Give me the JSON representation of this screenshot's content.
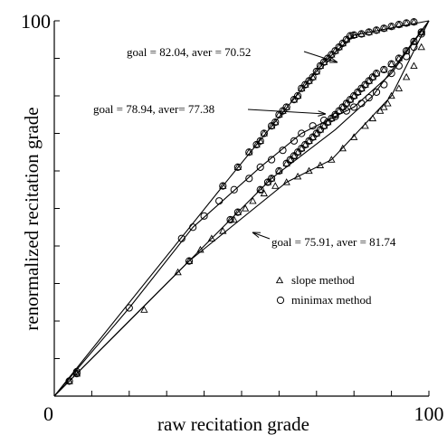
{
  "chart_data": {
    "type": "line",
    "title": "",
    "xlabel": "raw recitation grade",
    "ylabel": "renormalized recitation grade",
    "xlim": [
      0,
      100
    ],
    "ylim": [
      0,
      100
    ],
    "x_tick_labels": [
      "0",
      "100"
    ],
    "y_tick_labels": [
      "100"
    ],
    "grid": false,
    "legend": {
      "position": "right-middle",
      "entries": [
        {
          "label": "slope method",
          "marker": "triangle"
        },
        {
          "label": "minimax method",
          "marker": "circle"
        }
      ]
    },
    "annotations": [
      {
        "text": "goal = 82.04, aver = 70.52",
        "points_to_curve": "goal 82.04"
      },
      {
        "text": "goal = 78.94, aver= 77.38",
        "points_to_curve": "goal 78.94"
      },
      {
        "text": "goal = 75.91, aver = 81.74",
        "points_to_curve": "goal 75.91"
      }
    ],
    "series": [
      {
        "curve": "goal 82.04",
        "method": "slope",
        "line": [
          [
            0,
            0
          ],
          [
            45,
            56
          ],
          [
            72,
            89
          ],
          [
            80,
            96.2
          ],
          [
            100,
            100
          ]
        ],
        "markers": [
          [
            45,
            56
          ],
          [
            49,
            61
          ],
          [
            52,
            65
          ],
          [
            54,
            67
          ],
          [
            55,
            68
          ],
          [
            56,
            70
          ],
          [
            58,
            72
          ],
          [
            59,
            73
          ],
          [
            60,
            75
          ],
          [
            61,
            76
          ],
          [
            62,
            77
          ],
          [
            64,
            79
          ],
          [
            65,
            80
          ],
          [
            66,
            82
          ],
          [
            67,
            83
          ],
          [
            68,
            84
          ],
          [
            69,
            85
          ],
          [
            70,
            86.5
          ],
          [
            71,
            88
          ],
          [
            72,
            89
          ],
          [
            73,
            90
          ],
          [
            74,
            91
          ],
          [
            75,
            92
          ],
          [
            76,
            93
          ],
          [
            77,
            94
          ],
          [
            78,
            95
          ],
          [
            79,
            96
          ],
          [
            80,
            96.2
          ],
          [
            82,
            96.5
          ],
          [
            84,
            97
          ],
          [
            86,
            97.5
          ],
          [
            88,
            98
          ],
          [
            90,
            98.5
          ],
          [
            92,
            99
          ],
          [
            94,
            99.4
          ],
          [
            96,
            99.7
          ]
        ]
      },
      {
        "curve": "goal 78.94",
        "method": "slope",
        "line": [
          [
            0,
            0
          ],
          [
            36,
            36
          ],
          [
            58,
            58
          ],
          [
            75,
            71
          ],
          [
            85,
            80
          ],
          [
            100,
            100
          ]
        ],
        "markers": [
          [
            4,
            4
          ],
          [
            6,
            6
          ],
          [
            36,
            36
          ],
          [
            47,
            47
          ],
          [
            49,
            49
          ],
          [
            55,
            55
          ],
          [
            57,
            57
          ],
          [
            58,
            58
          ],
          [
            60,
            60
          ],
          [
            62,
            62
          ],
          [
            63,
            63
          ],
          [
            64,
            64
          ],
          [
            65,
            65
          ],
          [
            66,
            66
          ],
          [
            67,
            67
          ],
          [
            68,
            68
          ],
          [
            69,
            69
          ],
          [
            70,
            70
          ],
          [
            71,
            71
          ],
          [
            72,
            72
          ],
          [
            73,
            73
          ],
          [
            74,
            74
          ],
          [
            75,
            75
          ],
          [
            76,
            76
          ],
          [
            77,
            77
          ],
          [
            78,
            78
          ],
          [
            79,
            79
          ],
          [
            80,
            80
          ],
          [
            81,
            81
          ],
          [
            82,
            82
          ],
          [
            83,
            83
          ],
          [
            84,
            84
          ],
          [
            85,
            85
          ],
          [
            86,
            86
          ],
          [
            88,
            87
          ],
          [
            90,
            88.5
          ],
          [
            92,
            90
          ],
          [
            94,
            92
          ],
          [
            96,
            94.5
          ],
          [
            98,
            97
          ]
        ]
      },
      {
        "curve": "goal 75.91",
        "method": "slope",
        "line": [
          [
            0,
            0
          ],
          [
            36,
            36
          ],
          [
            62,
            57
          ],
          [
            74,
            63
          ],
          [
            90,
            80
          ],
          [
            100,
            100
          ]
        ],
        "markers": [
          [
            4,
            4
          ],
          [
            6,
            6
          ],
          [
            24,
            23
          ],
          [
            33,
            33
          ],
          [
            36,
            36
          ],
          [
            39,
            39
          ],
          [
            42,
            42
          ],
          [
            45,
            44
          ],
          [
            48,
            47
          ],
          [
            51,
            50
          ],
          [
            53,
            52
          ],
          [
            56,
            54
          ],
          [
            59,
            56
          ],
          [
            62,
            57
          ],
          [
            65,
            58.5
          ],
          [
            68,
            60
          ],
          [
            71,
            61.5
          ],
          [
            74,
            63
          ],
          [
            77,
            66
          ],
          [
            80,
            69
          ],
          [
            83,
            72
          ],
          [
            85,
            74
          ],
          [
            87,
            76
          ],
          [
            88,
            77
          ],
          [
            89,
            78
          ],
          [
            90,
            80
          ],
          [
            92,
            82
          ],
          [
            94,
            85
          ],
          [
            96,
            88
          ],
          [
            98,
            93
          ]
        ]
      },
      {
        "curve": "goal 75.91",
        "method": "minimax",
        "line": [
          [
            0,
            0
          ],
          [
            20,
            23.5
          ],
          [
            37,
            45
          ],
          [
            55,
            61
          ],
          [
            66,
            70
          ],
          [
            80,
            77
          ],
          [
            90,
            86
          ],
          [
            100,
            100
          ]
        ],
        "markers": [
          [
            6,
            6.5
          ],
          [
            20,
            23.5
          ],
          [
            34,
            42
          ],
          [
            37,
            45
          ],
          [
            40,
            48
          ],
          [
            44,
            52
          ],
          [
            48,
            55
          ],
          [
            52,
            58
          ],
          [
            55,
            61
          ],
          [
            58,
            63
          ],
          [
            61,
            65.5
          ],
          [
            64,
            68
          ],
          [
            66,
            70
          ],
          [
            69,
            72
          ],
          [
            72,
            73.5
          ],
          [
            75,
            74.5
          ],
          [
            78,
            76
          ],
          [
            80,
            77
          ],
          [
            82,
            78
          ],
          [
            84,
            79.5
          ],
          [
            86,
            81
          ],
          [
            88,
            83
          ],
          [
            90,
            86
          ],
          [
            92,
            88
          ],
          [
            94,
            90.5
          ],
          [
            96,
            93
          ],
          [
            98,
            96.5
          ]
        ]
      }
    ]
  }
}
